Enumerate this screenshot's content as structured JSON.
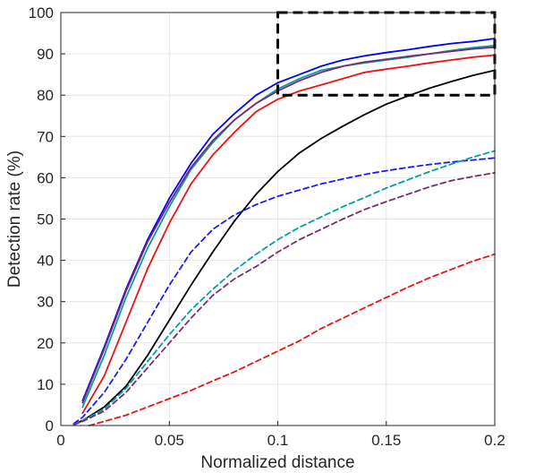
{
  "chart_data": {
    "type": "line",
    "title": "",
    "xlabel": "Normalized distance",
    "ylabel": "Detection rate (%)",
    "xlim": [
      0,
      0.2
    ],
    "ylim": [
      0,
      100
    ],
    "xticks": [
      0,
      0.05,
      0.1,
      0.15,
      0.2
    ],
    "xtick_labels": [
      "0",
      "0.05",
      "0.1",
      "0.15",
      "0.2"
    ],
    "yticks": [
      0,
      10,
      20,
      30,
      40,
      50,
      60,
      70,
      80,
      90,
      100
    ],
    "ytick_labels": [
      "0",
      "10",
      "20",
      "30",
      "40",
      "50",
      "60",
      "70",
      "80",
      "90",
      "100"
    ],
    "grid": true,
    "legend": "none",
    "zoom_box": {
      "x": [
        0.1,
        0.2
      ],
      "y": [
        80,
        100
      ],
      "color": "#000000",
      "style": "dashed"
    },
    "series": [
      {
        "color": "#0000ff",
        "style": "solid",
        "x": [
          0.01,
          0.02,
          0.03,
          0.04,
          0.05,
          0.06,
          0.07,
          0.08,
          0.09,
          0.1,
          0.11,
          0.12,
          0.13,
          0.14,
          0.15,
          0.16,
          0.17,
          0.18,
          0.19,
          0.2
        ],
        "y": [
          6,
          19,
          33,
          45,
          55,
          63.5,
          70.5,
          75.5,
          80,
          83,
          85,
          87,
          88.5,
          89.5,
          90.3,
          91,
          91.8,
          92.5,
          93,
          93.7
        ]
      },
      {
        "color": "#00a0a0",
        "style": "solid",
        "x": [
          0.01,
          0.02,
          0.03,
          0.04,
          0.05,
          0.06,
          0.07,
          0.08,
          0.09,
          0.1,
          0.11,
          0.12,
          0.13,
          0.14,
          0.15,
          0.16,
          0.17,
          0.18,
          0.19,
          0.2
        ],
        "y": [
          4.5,
          17,
          31,
          43,
          53,
          62,
          68.5,
          74,
          78,
          81.5,
          84,
          86,
          87,
          87.8,
          88.5,
          89.2,
          90,
          90.8,
          91.5,
          92
        ]
      },
      {
        "color": "#7b2a6e",
        "style": "solid",
        "x": [
          0.01,
          0.02,
          0.03,
          0.04,
          0.05,
          0.06,
          0.07,
          0.08,
          0.09,
          0.1,
          0.11,
          0.12,
          0.13,
          0.14,
          0.15,
          0.16,
          0.17,
          0.18,
          0.19,
          0.2
        ],
        "y": [
          5.5,
          18.5,
          32.5,
          44.5,
          54,
          62.5,
          69,
          74,
          78,
          81,
          83.5,
          85.5,
          87,
          88,
          88.7,
          89.4,
          90,
          90.6,
          91.2,
          91.6
        ]
      },
      {
        "color": "#ee1111",
        "style": "solid",
        "x": [
          0.01,
          0.02,
          0.03,
          0.04,
          0.05,
          0.06,
          0.07,
          0.08,
          0.09,
          0.1,
          0.11,
          0.12,
          0.13,
          0.14,
          0.15,
          0.16,
          0.17,
          0.18,
          0.19,
          0.2
        ],
        "y": [
          3,
          12,
          25,
          38,
          49,
          58.5,
          65.5,
          71,
          76,
          79,
          81,
          82.5,
          84,
          85.5,
          86.3,
          87,
          87.8,
          88.5,
          89.2,
          89.7
        ]
      },
      {
        "color": "#000000",
        "style": "solid",
        "x": [
          0.006,
          0.01,
          0.02,
          0.03,
          0.04,
          0.05,
          0.06,
          0.07,
          0.08,
          0.09,
          0.1,
          0.11,
          0.12,
          0.13,
          0.14,
          0.15,
          0.16,
          0.17,
          0.18,
          0.19,
          0.2
        ],
        "y": [
          0.3,
          1.2,
          4.5,
          9.5,
          17,
          25.5,
          34,
          42,
          49.5,
          56,
          61.5,
          66,
          69.5,
          72.5,
          75.3,
          77.8,
          79.8,
          81.7,
          83.3,
          84.8,
          86
        ]
      },
      {
        "color": "#1a1aff",
        "style": "dashed",
        "x": [
          0.006,
          0.01,
          0.02,
          0.03,
          0.04,
          0.05,
          0.06,
          0.07,
          0.08,
          0.09,
          0.1,
          0.11,
          0.12,
          0.13,
          0.14,
          0.15,
          0.16,
          0.17,
          0.18,
          0.19,
          0.2
        ],
        "y": [
          0.5,
          2,
          8,
          16,
          25,
          34,
          42,
          47.5,
          51,
          53.5,
          55.5,
          57,
          58.5,
          59.7,
          60.8,
          61.7,
          62.5,
          63.2,
          63.8,
          64.3,
          64.8
        ]
      },
      {
        "color": "#00a0a0",
        "style": "dashed",
        "x": [
          0.006,
          0.01,
          0.02,
          0.03,
          0.04,
          0.05,
          0.06,
          0.07,
          0.08,
          0.09,
          0.1,
          0.11,
          0.12,
          0.13,
          0.14,
          0.15,
          0.16,
          0.17,
          0.18,
          0.19,
          0.2
        ],
        "y": [
          0.3,
          1.2,
          4,
          9,
          15.5,
          22,
          28,
          33,
          37.5,
          41.5,
          45,
          48,
          50.5,
          53,
          55.2,
          57.5,
          59.5,
          61.5,
          63.3,
          65,
          66.5
        ]
      },
      {
        "color": "#7b2a6e",
        "style": "dashed",
        "x": [
          0.006,
          0.01,
          0.02,
          0.03,
          0.04,
          0.05,
          0.06,
          0.07,
          0.08,
          0.09,
          0.1,
          0.11,
          0.12,
          0.13,
          0.14,
          0.15,
          0.16,
          0.17,
          0.18,
          0.19,
          0.2
        ],
        "y": [
          0.2,
          1,
          3.5,
          8,
          14,
          20,
          26,
          31.5,
          35.5,
          38.5,
          42,
          45,
          47.5,
          50,
          52.3,
          54.2,
          56,
          57.8,
          59.3,
          60.3,
          61.2
        ]
      },
      {
        "color": "#ee1111",
        "style": "dashed",
        "x": [
          0.013,
          0.02,
          0.03,
          0.04,
          0.05,
          0.06,
          0.07,
          0.08,
          0.09,
          0.1,
          0.11,
          0.12,
          0.13,
          0.14,
          0.15,
          0.16,
          0.17,
          0.18,
          0.19,
          0.2
        ],
        "y": [
          0,
          1,
          2.5,
          4.5,
          6.5,
          8.5,
          10.8,
          13,
          15.5,
          18,
          20.5,
          23.5,
          26,
          28.5,
          31,
          33.5,
          35.8,
          37.8,
          39.8,
          41.5
        ]
      }
    ]
  }
}
